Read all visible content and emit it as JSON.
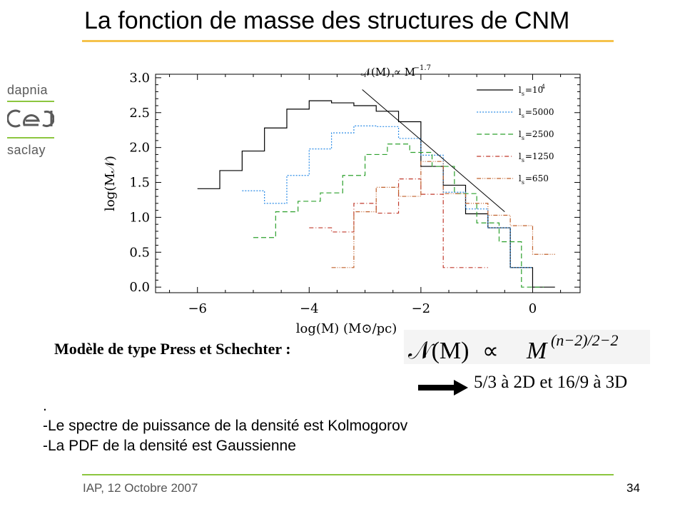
{
  "slide": {
    "title": "La fonction de masse des structures de CNM",
    "logo": {
      "top_text": "dapnia",
      "middle_text": "cea",
      "bottom_text": "saclay"
    },
    "model_text": "Modèle de type Press et Schechter :",
    "formula": {
      "lhs": "𝒩(M)",
      "relation": "∝",
      "base": "M",
      "exponent": "(n−2)/2−2"
    },
    "exponent_values": "5/3 à 2D et 16/9 à 3D",
    "bullets": [
      ".",
      "-Le spectre de puissance de la densité est Kolmogorov",
      "-La PDF de la densité est Gaussienne"
    ],
    "footer_left": "IAP, 12 Octobre 2007",
    "footer_right": "34",
    "colors": {
      "title_rule": "#f5c24b",
      "footer_rule": "#8cc63f",
      "arrow": "#000000"
    }
  },
  "chart_data": {
    "type": "line",
    "xlabel": "log(M)  (M⊙/pc)",
    "ylabel": "log(M𝒩)",
    "xlim": [
      -6.75,
      0.85
    ],
    "ylim": [
      -0.08,
      3.05
    ],
    "xticks": [
      -6,
      -4,
      -2,
      0
    ],
    "xtick_labels": [
      "−6",
      "−4",
      "−2",
      "0"
    ],
    "yticks": [
      0.0,
      0.5,
      1.0,
      1.5,
      2.0,
      2.5,
      3.0
    ],
    "ytick_labels": [
      "0.0",
      "0.5",
      "1.0",
      "1.5",
      "2.0",
      "2.5",
      "3.0"
    ],
    "annotation": {
      "text": "𝒩(M) ∝ M",
      "superscript": "−1.7"
    },
    "powerlaw_line": {
      "x": [
        -3.05,
        -0.5
      ],
      "y": [
        2.83,
        1.08
      ]
    },
    "legend_position": "top-right",
    "series": [
      {
        "name": "l",
        "subscript": "s",
        "value": "=10",
        "sup": "4",
        "color": "#000000",
        "dash": "",
        "x": [
          -5.8,
          -5.4,
          -5.0,
          -4.6,
          -4.2,
          -3.8,
          -3.4,
          -3.0,
          -2.6,
          -2.2,
          -1.8,
          -1.4,
          -1.0,
          -0.6,
          -0.2,
          0.2
        ],
        "y": [
          1.41,
          1.67,
          1.95,
          2.28,
          2.55,
          2.67,
          2.64,
          2.6,
          2.52,
          2.37,
          1.73,
          1.46,
          1.05,
          0.85,
          0.28,
          0.0
        ]
      },
      {
        "name": "l",
        "subscript": "s",
        "value": "=5000",
        "sup": "",
        "color": "#2b8ce6",
        "dash": "2,2",
        "x": [
          -5.0,
          -4.6,
          -4.2,
          -3.8,
          -3.4,
          -3.0,
          -2.6,
          -2.2,
          -1.8,
          -1.4,
          -1.0,
          -0.6,
          -0.2
        ],
        "y": [
          1.38,
          1.2,
          1.6,
          1.98,
          2.21,
          2.31,
          2.3,
          2.13,
          1.89,
          1.36,
          1.12,
          0.85,
          0.28
        ]
      },
      {
        "name": "l",
        "subscript": "s",
        "value": "=2500",
        "sup": "",
        "color": "#2ca02c",
        "dash": "7,4",
        "x": [
          -4.8,
          -4.4,
          -4.0,
          -3.6,
          -3.2,
          -2.8,
          -2.4,
          -2.0,
          -1.6,
          -1.2,
          -0.8,
          -0.4,
          0.0
        ],
        "y": [
          0.71,
          1.08,
          1.23,
          1.35,
          1.6,
          1.9,
          2.05,
          1.93,
          1.73,
          1.34,
          0.92,
          0.65,
          0.0
        ]
      },
      {
        "name": "l",
        "subscript": "s",
        "value": "=1250",
        "sup": "",
        "color": "#c0392b",
        "dash": "6,3,1,3",
        "x": [
          -3.8,
          -3.4,
          -3.0,
          -2.6,
          -2.2,
          -1.8,
          -1.4,
          -1.0
        ],
        "y": [
          0.85,
          0.79,
          1.2,
          1.06,
          1.55,
          1.33,
          0.28,
          0.28
        ]
      },
      {
        "name": "l",
        "subscript": "s",
        "value": "=650",
        "sup": "",
        "color": "#c0602b",
        "dash": "6,2,1,2,1,2",
        "x": [
          -3.4,
          -3.0,
          -2.6,
          -2.2,
          -1.8,
          -1.4,
          -1.0,
          -0.6,
          -0.2,
          0.2
        ],
        "y": [
          0.28,
          1.08,
          1.43,
          1.3,
          1.8,
          1.34,
          1.2,
          1.03,
          0.88,
          0.47
        ]
      }
    ]
  }
}
